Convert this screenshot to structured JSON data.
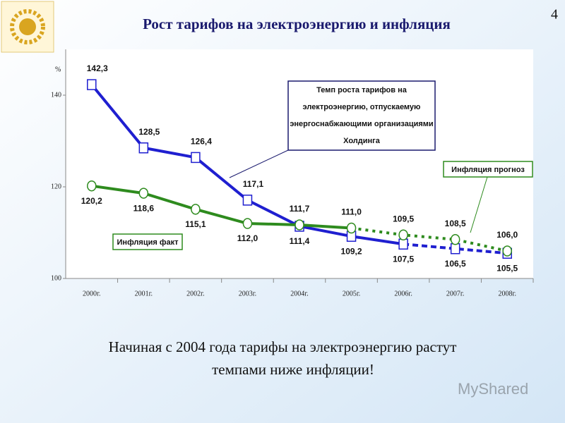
{
  "page_number": "4",
  "chart_data": {
    "type": "line",
    "title": "Рост тарифов на электроэнергию и инфляция",
    "y_label": "%",
    "categories": [
      "2000г.",
      "2001г.",
      "2002г.",
      "2003г.",
      "2004г.",
      "2005г.",
      "2006г.",
      "2007г.",
      "2008г."
    ],
    "ylim": [
      100,
      150
    ],
    "yticks": [
      100,
      120,
      140
    ],
    "series": [
      {
        "color": "#1f1fd0",
        "marker": "square",
        "dash_from_index": 6,
        "values": [
          142.3,
          128.5,
          126.4,
          117.1,
          111.4,
          109.2,
          107.5,
          106.5,
          105.5
        ],
        "value_labels": [
          "142,3",
          "128,5",
          "126,4",
          "117,1",
          "111,4",
          "109,2",
          "107,5",
          "106,5",
          "105,5"
        ]
      },
      {
        "color": "#2e8b1e",
        "marker": "circle",
        "dash_from_index": 5,
        "values": [
          120.2,
          118.6,
          115.1,
          112.0,
          111.7,
          111.0,
          109.5,
          108.5,
          106.0
        ],
        "value_labels": [
          "120,2",
          "118,6",
          "115,1",
          "112,0",
          "111,7",
          "111,0",
          "109,5",
          "108,5",
          "106,0"
        ]
      }
    ],
    "annotations": {
      "tariff_box": [
        "Темп роста тарифов на",
        "электроэнергию, отпускаемую",
        "энергоснабжающими организациями",
        "Холдинга"
      ],
      "inflation_fact": "Инфляция факт",
      "inflation_forecast": "Инфляция прогноз"
    }
  },
  "caption": [
    "Начиная с 2004 года тарифы на электроэнергию растут",
    "темпами ниже инфляции!"
  ],
  "watermark": "MyShared"
}
